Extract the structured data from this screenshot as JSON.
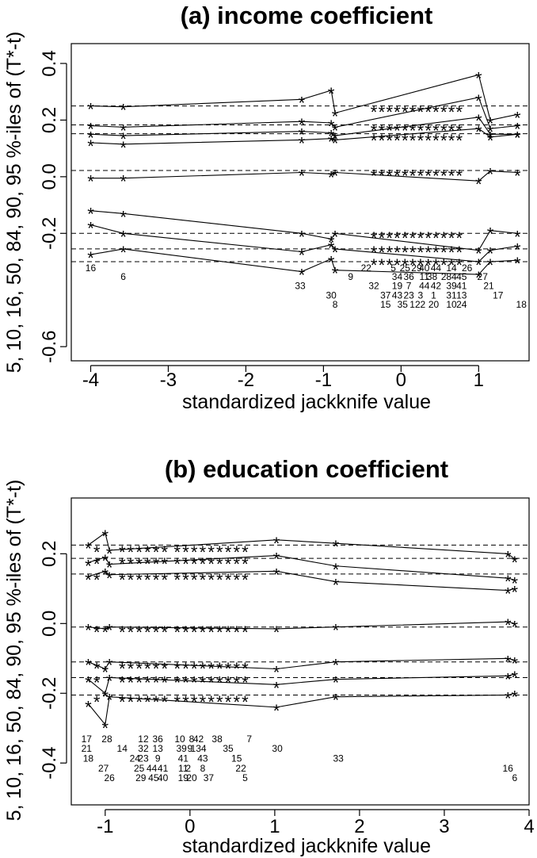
{
  "chart_data": [
    {
      "type": "scatter",
      "title": "(a) income coefficient",
      "xlabel": "standardized jackknife value",
      "ylabel": "5, 10, 16, 50, 84, 90, 95 %-iles of (T*-t)",
      "xlim": [
        -4.25,
        1.65
      ],
      "ylim": [
        -0.65,
        0.47
      ],
      "xticks": [
        -4,
        -3,
        -2,
        -1,
        0,
        1
      ],
      "yticks": [
        -0.6,
        -0.2,
        0.0,
        0.2,
        0.4
      ],
      "ytick_labels": [
        "-0.6",
        "-0.2",
        "0.0",
        "0.2",
        "0.4"
      ],
      "reference_lines": [
        0.25,
        0.183,
        0.152,
        0.022,
        -0.2,
        -0.255,
        -0.3
      ],
      "series": [
        {
          "x": [
            -4.0,
            -3.58,
            -1.28,
            -0.9,
            -0.85,
            1.0,
            1.15,
            1.5
          ],
          "values": [
            0.25,
            0.247,
            0.273,
            0.305,
            0.225,
            0.36,
            0.2,
            0.22
          ]
        },
        {
          "x": [
            -4.0,
            -3.58,
            -1.28,
            -0.9,
            -0.85,
            1.0,
            1.15,
            1.5
          ],
          "values": [
            0.18,
            0.175,
            0.195,
            0.19,
            0.175,
            0.28,
            0.17,
            0.18
          ]
        },
        {
          "x": [
            -4.0,
            -3.58,
            -1.28,
            -0.9,
            -0.85,
            1.0,
            1.15,
            1.5
          ],
          "values": [
            0.15,
            0.145,
            0.16,
            0.155,
            0.145,
            0.21,
            0.15,
            0.15
          ]
        },
        {
          "x": [
            -4.0,
            -3.58,
            -1.28,
            -0.9,
            -0.85,
            1.0,
            1.15,
            1.5
          ],
          "values": [
            0.12,
            0.115,
            0.13,
            0.135,
            0.13,
            0.17,
            0.14,
            0.15
          ]
        },
        {
          "x": [
            -4.0,
            -3.58,
            -1.28,
            -0.9,
            -0.85,
            1.0,
            1.15,
            1.5
          ],
          "values": [
            -0.005,
            -0.005,
            0.015,
            0.01,
            0.015,
            -0.015,
            0.02,
            0.015
          ]
        },
        {
          "x": [
            -4.0,
            -3.58,
            -1.28,
            -0.9,
            -0.85,
            1.0,
            1.15,
            1.5
          ],
          "values": [
            -0.12,
            -0.13,
            -0.2,
            -0.22,
            -0.2,
            -0.26,
            -0.19,
            -0.2
          ]
        },
        {
          "x": [
            -4.0,
            -3.58,
            -1.28,
            -0.9,
            -0.85,
            1.0,
            1.15,
            1.5
          ],
          "values": [
            -0.17,
            -0.2,
            -0.265,
            -0.24,
            -0.255,
            -0.3,
            -0.26,
            -0.245
          ]
        },
        {
          "x": [
            -4.0,
            -3.58,
            -1.28,
            -0.9,
            -0.85,
            1.0,
            1.15,
            1.5
          ],
          "values": [
            -0.275,
            -0.255,
            -0.335,
            -0.29,
            -0.33,
            -0.345,
            -0.3,
            -0.295
          ]
        }
      ],
      "dense_cluster_x": [
        -0.35,
        -0.25,
        -0.15,
        -0.05,
        0.05,
        0.15,
        0.25,
        0.35,
        0.45,
        0.55,
        0.65,
        0.75
      ],
      "dense_cluster_y": [
        0.24,
        0.175,
        0.14,
        0.015,
        -0.205,
        -0.255,
        -0.3
      ],
      "index_labels": [
        {
          "x": -4.0,
          "y": -0.333,
          "text": "16"
        },
        {
          "x": -3.58,
          "y": -0.365,
          "text": "6"
        },
        {
          "x": -0.45,
          "y": -0.333,
          "text": "22"
        },
        {
          "x": -0.1,
          "y": -0.333,
          "text": "5"
        },
        {
          "x": 0.05,
          "y": -0.333,
          "text": "25"
        },
        {
          "x": 0.2,
          "y": -0.333,
          "text": "29"
        },
        {
          "x": 0.3,
          "y": -0.333,
          "text": "40"
        },
        {
          "x": 0.45,
          "y": -0.333,
          "text": "44"
        },
        {
          "x": 0.65,
          "y": -0.333,
          "text": "14"
        },
        {
          "x": 0.85,
          "y": -0.333,
          "text": "26"
        },
        {
          "x": -0.65,
          "y": -0.365,
          "text": "9"
        },
        {
          "x": -0.05,
          "y": -0.365,
          "text": "34"
        },
        {
          "x": 0.1,
          "y": -0.365,
          "text": "36"
        },
        {
          "x": 0.3,
          "y": -0.365,
          "text": "11"
        },
        {
          "x": 0.4,
          "y": -0.365,
          "text": "38"
        },
        {
          "x": 0.55,
          "y": -0.365,
          "text": "2"
        },
        {
          "x": 0.65,
          "y": -0.365,
          "text": "84"
        },
        {
          "x": 0.78,
          "y": -0.365,
          "text": "45"
        },
        {
          "x": 1.05,
          "y": -0.365,
          "text": "27"
        },
        {
          "x": -1.3,
          "y": -0.397,
          "text": "33"
        },
        {
          "x": -0.35,
          "y": -0.397,
          "text": "32"
        },
        {
          "x": -0.05,
          "y": -0.397,
          "text": "19"
        },
        {
          "x": 0.1,
          "y": -0.397,
          "text": "7"
        },
        {
          "x": 0.3,
          "y": -0.397,
          "text": "44"
        },
        {
          "x": 0.45,
          "y": -0.397,
          "text": "42"
        },
        {
          "x": 0.65,
          "y": -0.397,
          "text": "39"
        },
        {
          "x": 0.78,
          "y": -0.397,
          "text": "41"
        },
        {
          "x": 1.13,
          "y": -0.397,
          "text": "21"
        },
        {
          "x": -0.9,
          "y": -0.43,
          "text": "30"
        },
        {
          "x": -0.2,
          "y": -0.43,
          "text": "37"
        },
        {
          "x": -0.05,
          "y": -0.43,
          "text": "43"
        },
        {
          "x": 0.1,
          "y": -0.43,
          "text": "23"
        },
        {
          "x": 0.25,
          "y": -0.43,
          "text": "3"
        },
        {
          "x": 0.42,
          "y": -0.43,
          "text": "1"
        },
        {
          "x": 0.65,
          "y": -0.43,
          "text": "31"
        },
        {
          "x": 0.78,
          "y": -0.43,
          "text": "13"
        },
        {
          "x": 1.25,
          "y": -0.43,
          "text": "17"
        },
        {
          "x": -0.85,
          "y": -0.463,
          "text": "8"
        },
        {
          "x": -0.2,
          "y": -0.463,
          "text": "15"
        },
        {
          "x": 0.02,
          "y": -0.463,
          "text": "35"
        },
        {
          "x": 0.18,
          "y": -0.463,
          "text": "12"
        },
        {
          "x": 0.28,
          "y": -0.463,
          "text": "2"
        },
        {
          "x": 0.42,
          "y": -0.463,
          "text": "20"
        },
        {
          "x": 0.65,
          "y": -0.463,
          "text": "10"
        },
        {
          "x": 0.78,
          "y": -0.463,
          "text": "24"
        },
        {
          "x": 1.55,
          "y": -0.463,
          "text": "18"
        }
      ]
    },
    {
      "type": "scatter",
      "title": "(b) education coefficient",
      "xlabel": "standardized jackknife value",
      "ylabel": "5, 10, 16, 50, 84, 90, 95 %-iles of (T*-t)",
      "xlim": [
        -1.4,
        4.0
      ],
      "ylim": [
        -0.52,
        0.36
      ],
      "xticks": [
        -1,
        0,
        1,
        2,
        3,
        4
      ],
      "yticks": [
        -0.4,
        -0.2,
        0.0,
        0.2
      ],
      "ytick_labels": [
        "-0.4",
        "-0.2",
        "0.0",
        "0.2"
      ],
      "reference_lines": [
        0.225,
        0.187,
        0.142,
        -0.01,
        -0.11,
        -0.155,
        -0.205
      ],
      "series": [
        {
          "x": [
            -1.2,
            -1.0,
            -0.95,
            1.02,
            1.72,
            3.75,
            3.83
          ],
          "values": [
            0.225,
            0.26,
            0.21,
            0.24,
            0.23,
            0.2,
            0.185
          ]
        },
        {
          "x": [
            -1.2,
            -1.0,
            -0.95,
            1.02,
            1.72,
            3.75,
            3.83
          ],
          "values": [
            0.175,
            0.19,
            0.17,
            0.195,
            0.165,
            0.13,
            0.125
          ]
        },
        {
          "x": [
            -1.2,
            -1.0,
            -0.95,
            1.02,
            1.72,
            3.75,
            3.83
          ],
          "values": [
            0.135,
            0.15,
            0.14,
            0.15,
            0.12,
            0.095,
            0.1
          ]
        },
        {
          "x": [
            -1.2,
            -1.0,
            -0.95,
            1.02,
            1.72,
            3.75,
            3.83
          ],
          "values": [
            -0.01,
            -0.015,
            -0.01,
            -0.015,
            -0.01,
            0.005,
            0.0
          ]
        },
        {
          "x": [
            -1.2,
            -1.0,
            -0.95,
            1.02,
            1.72,
            3.75,
            3.83
          ],
          "values": [
            -0.11,
            -0.13,
            -0.11,
            -0.13,
            -0.11,
            -0.1,
            -0.105
          ]
        },
        {
          "x": [
            -1.2,
            -1.0,
            -0.95,
            1.02,
            1.72,
            3.75,
            3.83
          ],
          "values": [
            -0.16,
            -0.2,
            -0.155,
            -0.175,
            -0.16,
            -0.15,
            -0.145
          ]
        },
        {
          "x": [
            -1.2,
            -1.0,
            -0.95,
            1.02,
            1.72,
            3.75,
            3.83
          ],
          "values": [
            -0.23,
            -0.29,
            -0.21,
            -0.24,
            -0.21,
            -0.205,
            -0.2
          ]
        }
      ],
      "dense_cluster_x": [
        -1.1,
        -0.8,
        -0.7,
        -0.6,
        -0.5,
        -0.4,
        -0.3,
        -0.15,
        -0.05,
        0.05,
        0.15,
        0.25,
        0.35,
        0.45,
        0.55,
        0.65
      ],
      "dense_cluster_y": [
        0.215,
        0.18,
        0.135,
        -0.015,
        -0.12,
        -0.16,
        -0.215
      ],
      "index_labels": [
        {
          "x": -1.22,
          "y": -0.34,
          "text": "17"
        },
        {
          "x": -0.98,
          "y": -0.34,
          "text": "28"
        },
        {
          "x": -0.55,
          "y": -0.34,
          "text": "12"
        },
        {
          "x": -0.38,
          "y": -0.34,
          "text": "36"
        },
        {
          "x": -0.12,
          "y": -0.34,
          "text": "10"
        },
        {
          "x": 0.02,
          "y": -0.34,
          "text": "8"
        },
        {
          "x": 0.1,
          "y": -0.34,
          "text": "42"
        },
        {
          "x": 0.32,
          "y": -0.34,
          "text": "38"
        },
        {
          "x": 0.7,
          "y": -0.34,
          "text": "7"
        },
        {
          "x": -1.22,
          "y": -0.368,
          "text": "21"
        },
        {
          "x": -0.8,
          "y": -0.368,
          "text": "14"
        },
        {
          "x": -0.55,
          "y": -0.368,
          "text": "32"
        },
        {
          "x": -0.38,
          "y": -0.368,
          "text": "13"
        },
        {
          "x": -0.1,
          "y": -0.368,
          "text": "39"
        },
        {
          "x": 0.0,
          "y": -0.368,
          "text": "9"
        },
        {
          "x": 0.1,
          "y": -0.368,
          "text": "134"
        },
        {
          "x": 0.45,
          "y": -0.368,
          "text": "35"
        },
        {
          "x": 1.03,
          "y": -0.368,
          "text": "30"
        },
        {
          "x": -1.2,
          "y": -0.396,
          "text": "18"
        },
        {
          "x": -0.65,
          "y": -0.396,
          "text": "24"
        },
        {
          "x": -0.55,
          "y": -0.396,
          "text": "23"
        },
        {
          "x": -0.38,
          "y": -0.396,
          "text": "9"
        },
        {
          "x": -0.08,
          "y": -0.396,
          "text": "41"
        },
        {
          "x": 0.15,
          "y": -0.396,
          "text": "43"
        },
        {
          "x": 0.55,
          "y": -0.396,
          "text": "15"
        },
        {
          "x": 1.75,
          "y": -0.396,
          "text": "33"
        },
        {
          "x": -1.02,
          "y": -0.424,
          "text": "27"
        },
        {
          "x": -0.6,
          "y": -0.424,
          "text": "25"
        },
        {
          "x": -0.45,
          "y": -0.424,
          "text": "44"
        },
        {
          "x": -0.32,
          "y": -0.424,
          "text": "41"
        },
        {
          "x": -0.08,
          "y": -0.424,
          "text": "11"
        },
        {
          "x": -0.02,
          "y": -0.424,
          "text": "2"
        },
        {
          "x": 0.15,
          "y": -0.424,
          "text": "8"
        },
        {
          "x": 0.6,
          "y": -0.424,
          "text": "22"
        },
        {
          "x": 3.75,
          "y": -0.424,
          "text": "16"
        },
        {
          "x": -0.95,
          "y": -0.452,
          "text": "26"
        },
        {
          "x": -0.58,
          "y": -0.452,
          "text": "29"
        },
        {
          "x": -0.43,
          "y": -0.452,
          "text": "45"
        },
        {
          "x": -0.32,
          "y": -0.452,
          "text": "40"
        },
        {
          "x": -0.08,
          "y": -0.452,
          "text": "19"
        },
        {
          "x": 0.02,
          "y": -0.452,
          "text": "20"
        },
        {
          "x": 0.22,
          "y": -0.452,
          "text": "37"
        },
        {
          "x": 0.65,
          "y": -0.452,
          "text": "5"
        },
        {
          "x": 3.83,
          "y": -0.452,
          "text": "6"
        }
      ]
    }
  ]
}
